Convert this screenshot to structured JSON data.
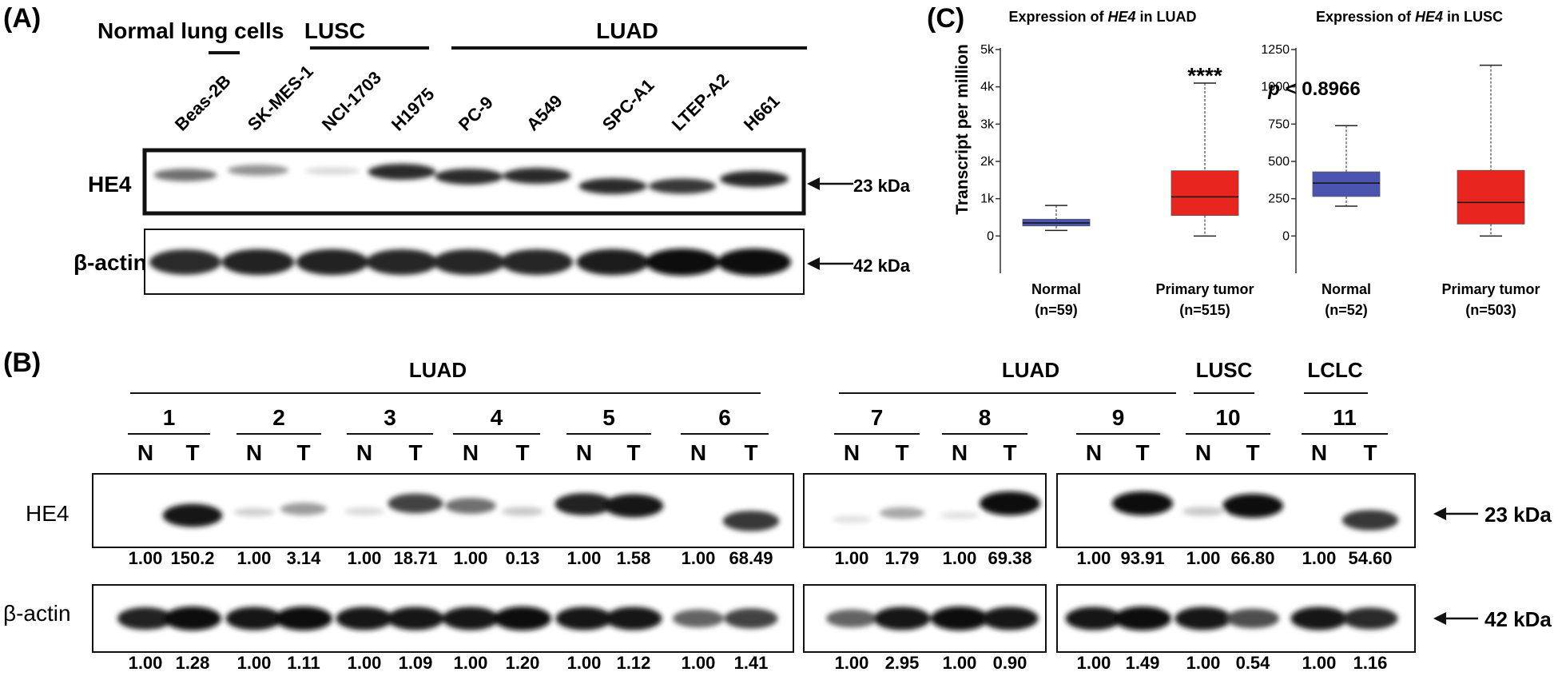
{
  "panelA": {
    "label": "(A)",
    "groups": [
      "Normal lung cells",
      "LUSC",
      "LUAD"
    ],
    "lanes": [
      "Beas-2B",
      "SK-MES-1",
      "NCI-1703",
      "H1975",
      "PC-9",
      "A549",
      "SPC-A1",
      "LTEP-A2",
      "H661"
    ],
    "hits": [
      {
        "name": "HE4",
        "marker": "23 kDa"
      },
      {
        "name": "β-actin",
        "marker": "42 kDa"
      }
    ],
    "he4_intensity": [
      0.55,
      0.4,
      0.08,
      0.85,
      0.85,
      0.85,
      0.85,
      0.8,
      0.88
    ],
    "actin_intensity": [
      0.85,
      0.9,
      0.9,
      0.88,
      0.88,
      0.88,
      0.92,
      1.0,
      1.0
    ]
  },
  "panelB": {
    "label": "(B)",
    "groups": [
      "LUAD",
      "LUAD",
      "LUSC",
      "LCLC"
    ],
    "pairs": [
      "1",
      "2",
      "3",
      "4",
      "5",
      "6",
      "7",
      "8",
      "9",
      "10",
      "11"
    ],
    "lane_labels": [
      "N",
      "T"
    ],
    "hits": [
      {
        "name": "HE4",
        "marker": "23 kDa"
      },
      {
        "name": "β-actin",
        "marker": "42 kDa"
      }
    ],
    "he4_values": [
      "1.00",
      "150.2",
      "1.00",
      "3.14",
      "1.00",
      "18.71",
      "1.00",
      "0.13",
      "1.00",
      "1.58",
      "1.00",
      "68.49",
      "1.00",
      "1.79",
      "1.00",
      "69.38",
      "1.00",
      "93.91",
      "1.00",
      "66.80",
      "1.00",
      "54.60"
    ],
    "actin_values": [
      "1.00",
      "1.28",
      "1.00",
      "1.11",
      "1.00",
      "1.09",
      "1.00",
      "1.20",
      "1.00",
      "1.12",
      "1.00",
      "1.41",
      "1.00",
      "2.95",
      "1.00",
      "0.90",
      "1.00",
      "1.49",
      "1.00",
      "0.54",
      "1.00",
      "1.16"
    ],
    "he4_intensity": [
      0.0,
      0.95,
      0.12,
      0.35,
      0.08,
      0.75,
      0.55,
      0.15,
      0.9,
      0.95,
      0.0,
      0.8,
      0.05,
      0.3,
      0.05,
      1.0,
      0.0,
      1.0,
      0.15,
      1.0,
      0.0,
      0.8
    ],
    "actin_intensity": [
      0.9,
      1.0,
      0.95,
      1.0,
      0.95,
      0.95,
      0.95,
      1.0,
      0.95,
      0.95,
      0.6,
      0.75,
      0.6,
      0.95,
      1.0,
      0.95,
      0.95,
      1.0,
      0.95,
      0.7,
      0.95,
      0.85
    ]
  },
  "chart_data": [
    {
      "type": "box",
      "title_prefix": "Expression of ",
      "title_gene": "HE4",
      "title_suffix": " in LUAD",
      "ylabel": "Transcript per million",
      "yticks": [
        "0",
        "1k",
        "2k",
        "3k",
        "4k",
        "5k"
      ],
      "ylim": [
        -1000,
        5000
      ],
      "categories": [
        "Normal",
        "Primary tumor"
      ],
      "counts": [
        "(n=59)",
        "(n=515)"
      ],
      "boxes": [
        {
          "min": 150,
          "q1": 270,
          "median": 350,
          "q3": 450,
          "max": 820,
          "color": "#4b55b0"
        },
        {
          "min": 0,
          "q1": 550,
          "median": 1050,
          "q3": 1750,
          "max": 4100,
          "color": "#e8261f"
        }
      ],
      "annotation": "****"
    },
    {
      "type": "box",
      "title_prefix": "Expression of ",
      "title_gene": "HE4",
      "title_suffix": " in LUSC",
      "yticks": [
        "0",
        "250",
        "500",
        "750",
        "1000",
        "1250"
      ],
      "ylim": [
        -250,
        1250
      ],
      "categories": [
        "Normal",
        "Primary tumor"
      ],
      "counts": [
        "(n=52)",
        "(n=503)"
      ],
      "boxes": [
        {
          "min": 200,
          "q1": 265,
          "median": 355,
          "q3": 430,
          "max": 740,
          "color": "#4b55b0"
        },
        {
          "min": 0,
          "q1": 80,
          "median": 225,
          "q3": 440,
          "max": 1145,
          "color": "#e8261f"
        }
      ],
      "annotation_p": "p",
      "annotation_rest": " < 0.8966"
    }
  ],
  "panelC": {
    "label": "(C)"
  }
}
